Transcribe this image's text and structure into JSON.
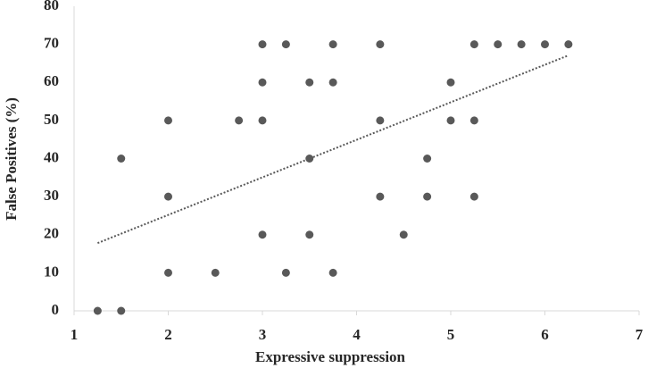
{
  "chart_data": {
    "type": "scatter",
    "x_label": "Expressive suppression",
    "y_label": "False Positives (%)",
    "xlim": [
      1,
      7
    ],
    "xticks": [
      1,
      2,
      3,
      4,
      5,
      6,
      7
    ],
    "ylim": [
      0,
      80
    ],
    "yticks": [
      0,
      10,
      20,
      30,
      40,
      50,
      60,
      70,
      80
    ],
    "grid": false,
    "color": "#595959",
    "x": [
      1.25,
      1.5,
      1.5,
      2,
      2,
      2,
      2.5,
      2.75,
      3,
      3,
      3,
      3,
      3.25,
      3.25,
      3.5,
      3.5,
      3.5,
      3.75,
      3.75,
      3.75,
      4.25,
      4.25,
      4.25,
      4.5,
      4.75,
      4.75,
      5,
      5,
      5.25,
      5.25,
      5.25,
      5.5,
      5.75,
      6,
      6.25
    ],
    "y": [
      0,
      0,
      40,
      10,
      30,
      50,
      10,
      50,
      70,
      60,
      50,
      20,
      70,
      10,
      60,
      40,
      20,
      70,
      60,
      10,
      70,
      50,
      30,
      20,
      40,
      30,
      60,
      50,
      70,
      50,
      30,
      70,
      70,
      70,
      70
    ],
    "trendline": {
      "x": [
        1.25,
        6.25
      ],
      "y": [
        17.8,
        67.1
      ],
      "color": "#595959"
    }
  }
}
